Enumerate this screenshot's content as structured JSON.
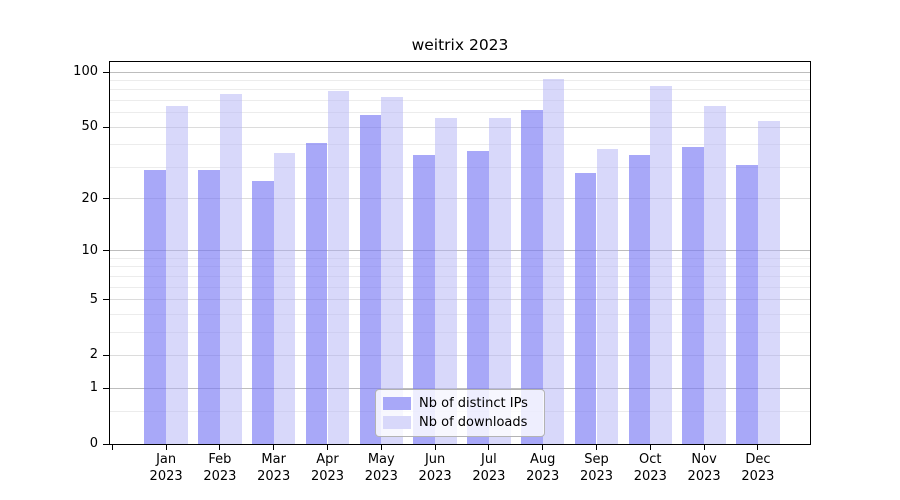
{
  "title": "weitrix 2023",
  "chart_data": {
    "type": "bar",
    "title": "weitrix 2023",
    "xlabel": "",
    "ylabel": "",
    "categories": [
      "Jan 2023",
      "Feb 2023",
      "Mar 2023",
      "Apr 2023",
      "May 2023",
      "Jun 2023",
      "Jul 2023",
      "Aug 2023",
      "Sep 2023",
      "Oct 2023",
      "Nov 2023",
      "Dec 2023"
    ],
    "series": [
      {
        "name": "Nb of distinct IPs",
        "color": "#a8a8f8",
        "fill": "#7979f4",
        "fill_alpha": 0.65,
        "values": [
          29,
          29,
          25,
          41,
          58,
          35,
          37,
          62,
          28,
          35,
          39,
          31
        ]
      },
      {
        "name": "Nb of downloads",
        "color": "#d8d8fa",
        "fill": "#b1b1f5",
        "fill_alpha": 0.5,
        "values": [
          65,
          76,
          36,
          79,
          73,
          56,
          56,
          92,
          38,
          84,
          65,
          54
        ]
      }
    ],
    "y_axis": {
      "scale": "log1p",
      "ticks": [
        100,
        50,
        20,
        10,
        5,
        2,
        1,
        0
      ],
      "max": 113.4
    },
    "gridlines": {
      "major": [
        1,
        10,
        100
      ],
      "mid": [
        2,
        5,
        20,
        50
      ],
      "minor": [
        0.5,
        3,
        4,
        6,
        7,
        8,
        9,
        30,
        40,
        60,
        70,
        80,
        90
      ]
    },
    "grid": "on",
    "legend_position": "bottom-center"
  }
}
